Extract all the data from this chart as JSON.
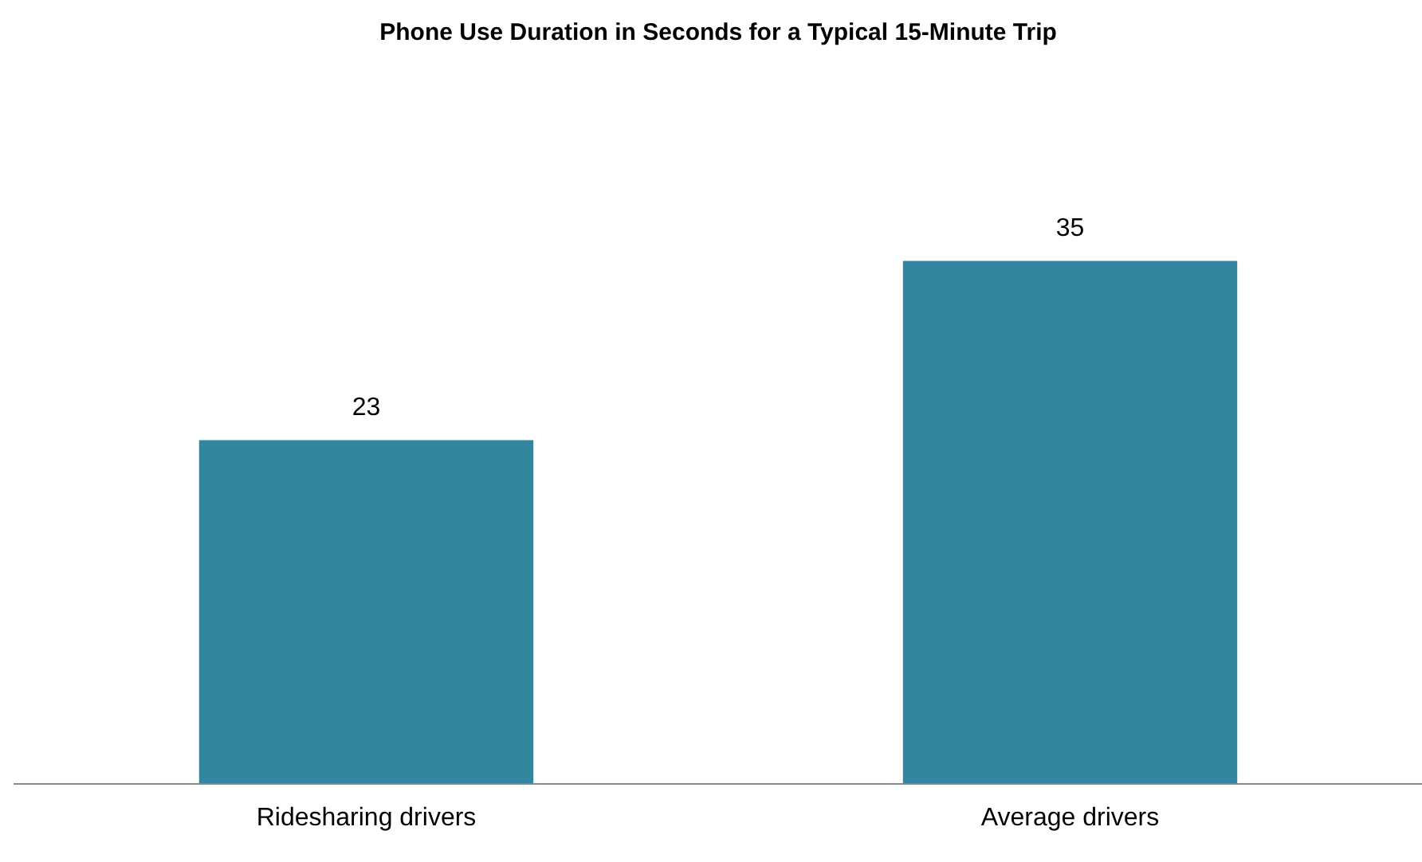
{
  "chart_data": {
    "type": "bar",
    "title": "Phone Use Duration in Seconds for a Typical 15-Minute Trip",
    "categories": [
      "Ridesharing drivers",
      "Average drivers"
    ],
    "values": [
      23,
      35
    ],
    "color": "#32869e",
    "data_labels": true,
    "grid": false,
    "legend": false
  }
}
